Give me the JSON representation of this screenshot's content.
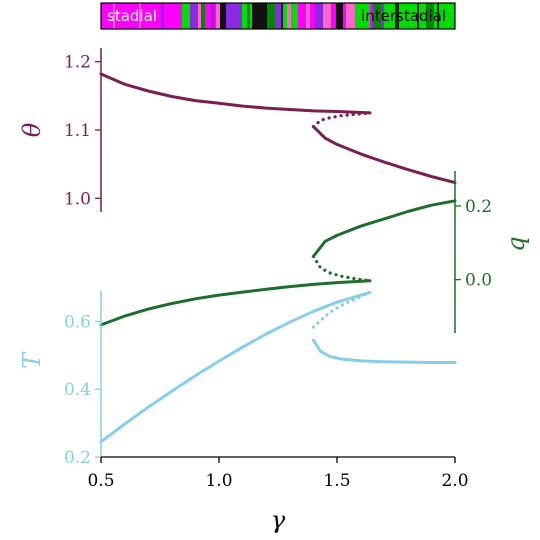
{
  "chart_data": {
    "type": "line",
    "xlabel": "γ",
    "xlim": [
      0.5,
      2.0
    ],
    "xticks": [
      "0.5",
      "1.0",
      "1.5",
      "2.0"
    ],
    "color_strip": {
      "left_label": "stadial",
      "right_label": "interstadial",
      "colors": [
        "#ff00ff",
        "#00dd00",
        "#222222",
        "#8a2be2",
        "#ff66cc",
        "#008800",
        "#111111"
      ]
    },
    "panels": [
      {
        "id": "theta",
        "ylabel": "θ",
        "color": "#7b1e52",
        "ylim": [
          0.98,
          1.22
        ],
        "yticks": [
          {
            "v": 1.0,
            "label": "1.0"
          },
          {
            "v": 1.1,
            "label": "1.1"
          },
          {
            "v": 1.2,
            "label": "1.2"
          }
        ],
        "branches": [
          {
            "style": "solid",
            "x": [
              0.5,
              0.6,
              0.7,
              0.8,
              0.9,
              1.0,
              1.1,
              1.2,
              1.3,
              1.4,
              1.5,
              1.64
            ],
            "y": [
              1.182,
              1.167,
              1.157,
              1.149,
              1.143,
              1.139,
              1.135,
              1.132,
              1.13,
              1.128,
              1.127,
              1.125
            ]
          },
          {
            "style": "dotted",
            "x": [
              1.4,
              1.43,
              1.47,
              1.52,
              1.58,
              1.64
            ],
            "y": [
              1.105,
              1.114,
              1.118,
              1.121,
              1.123,
              1.125
            ]
          },
          {
            "style": "solid",
            "x": [
              1.4,
              1.45,
              1.5,
              1.6,
              1.7,
              1.8,
              1.9,
              2.0
            ],
            "y": [
              1.105,
              1.088,
              1.079,
              1.065,
              1.053,
              1.042,
              1.032,
              1.023
            ]
          }
        ]
      },
      {
        "id": "q",
        "ylabel": "q",
        "color": "#1e6e2e",
        "ylim": [
          -0.145,
          0.295
        ],
        "yticks": [
          {
            "v": 0.0,
            "label": "0.0"
          },
          {
            "v": 0.2,
            "label": "0.2"
          }
        ],
        "branches": [
          {
            "style": "solid",
            "x": [
              0.5,
              0.6,
              0.7,
              0.8,
              0.9,
              1.0,
              1.1,
              1.2,
              1.3,
              1.4,
              1.5,
              1.64
            ],
            "y": [
              -0.123,
              -0.099,
              -0.08,
              -0.065,
              -0.052,
              -0.042,
              -0.034,
              -0.026,
              -0.019,
              -0.013,
              -0.008,
              -0.003
            ]
          },
          {
            "style": "dotted",
            "x": [
              1.4,
              1.43,
              1.47,
              1.52,
              1.58,
              1.64
            ],
            "y": [
              0.063,
              0.032,
              0.018,
              0.009,
              0.002,
              -0.003
            ]
          },
          {
            "style": "solid",
            "x": [
              1.4,
              1.45,
              1.5,
              1.6,
              1.7,
              1.8,
              1.9,
              2.0
            ],
            "y": [
              0.063,
              0.104,
              0.12,
              0.145,
              0.165,
              0.185,
              0.202,
              0.214
            ]
          }
        ]
      },
      {
        "id": "T",
        "ylabel": "T",
        "color": "#87ceeb",
        "ylim": [
          0.2,
          0.69
        ],
        "yticks": [
          {
            "v": 0.2,
            "label": "0.2"
          },
          {
            "v": 0.4,
            "label": "0.4"
          },
          {
            "v": 0.6,
            "label": "0.6"
          }
        ],
        "branches": [
          {
            "style": "solid",
            "x": [
              0.5,
              0.6,
              0.7,
              0.8,
              0.9,
              1.0,
              1.1,
              1.2,
              1.3,
              1.4,
              1.5,
              1.64
            ],
            "y": [
              0.245,
              0.297,
              0.347,
              0.394,
              0.44,
              0.483,
              0.524,
              0.563,
              0.598,
              0.63,
              0.657,
              0.686
            ]
          },
          {
            "style": "dotted",
            "x": [
              1.4,
              1.43,
              1.47,
              1.52,
              1.58,
              1.64
            ],
            "y": [
              0.583,
              0.603,
              0.627,
              0.648,
              0.667,
              0.686
            ]
          },
          {
            "style": "solid",
            "x": [
              1.4,
              1.43,
              1.47,
              1.52,
              1.6,
              1.7,
              1.8,
              1.9,
              2.0
            ],
            "y": [
              0.545,
              0.512,
              0.497,
              0.489,
              0.484,
              0.481,
              0.48,
              0.479,
              0.479
            ]
          }
        ]
      }
    ]
  }
}
